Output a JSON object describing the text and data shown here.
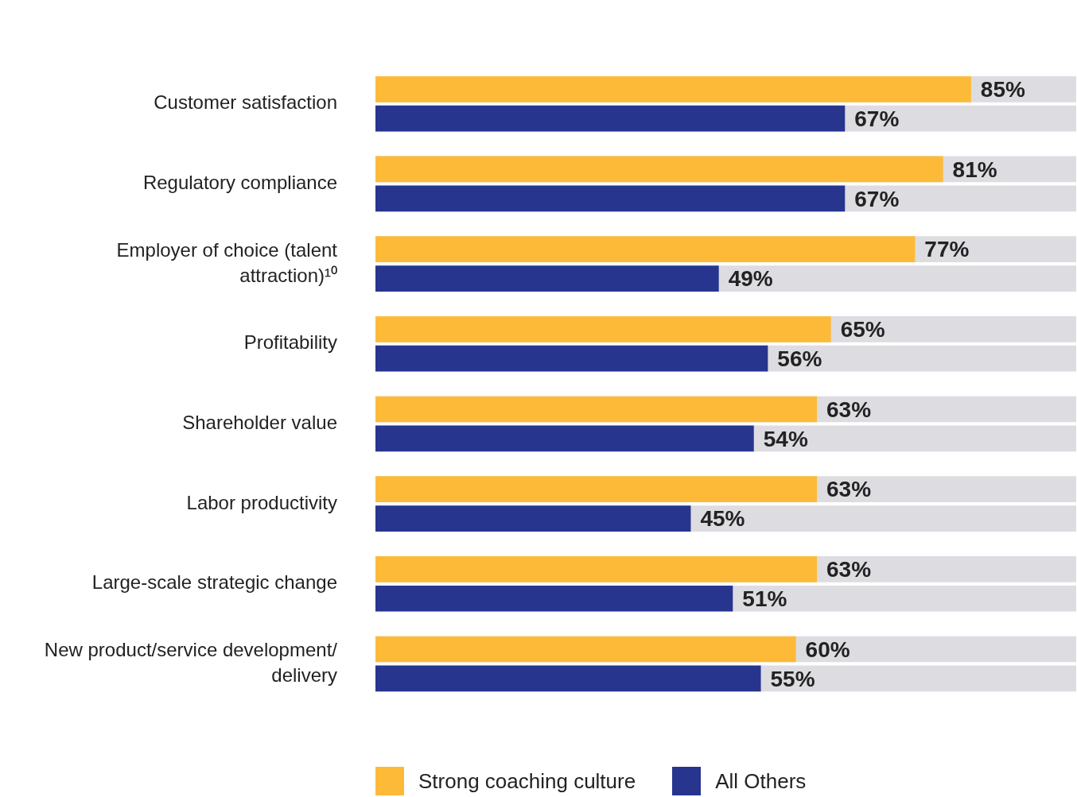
{
  "chart_data": {
    "type": "bar",
    "orientation": "horizontal",
    "categories": [
      "Customer satisfaction",
      "Regulatory compliance",
      "Employer of choice (talent attraction)¹⁰",
      "Profitability",
      "Shareholder value",
      "Labor productivity",
      "Large-scale strategic change",
      "New product/service development/ delivery"
    ],
    "series": [
      {
        "name": "Strong coaching culture",
        "color": "#fdba38",
        "values": [
          85,
          81,
          77,
          65,
          63,
          63,
          63,
          60
        ],
        "value_labels": [
          "85%",
          "81%",
          "77%",
          "65%",
          "63%",
          "63%",
          "63%",
          "60%"
        ]
      },
      {
        "name": "All Others",
        "color": "#27358f",
        "values": [
          67,
          67,
          49,
          56,
          54,
          45,
          51,
          55
        ],
        "value_labels": [
          "67%",
          "67%",
          "49%",
          "56%",
          "54%",
          "45%",
          "51%",
          "55%"
        ]
      }
    ],
    "xlim": [
      0,
      100
    ],
    "tick_labels": "y",
    "grid": false,
    "legend": "bottom left"
  }
}
